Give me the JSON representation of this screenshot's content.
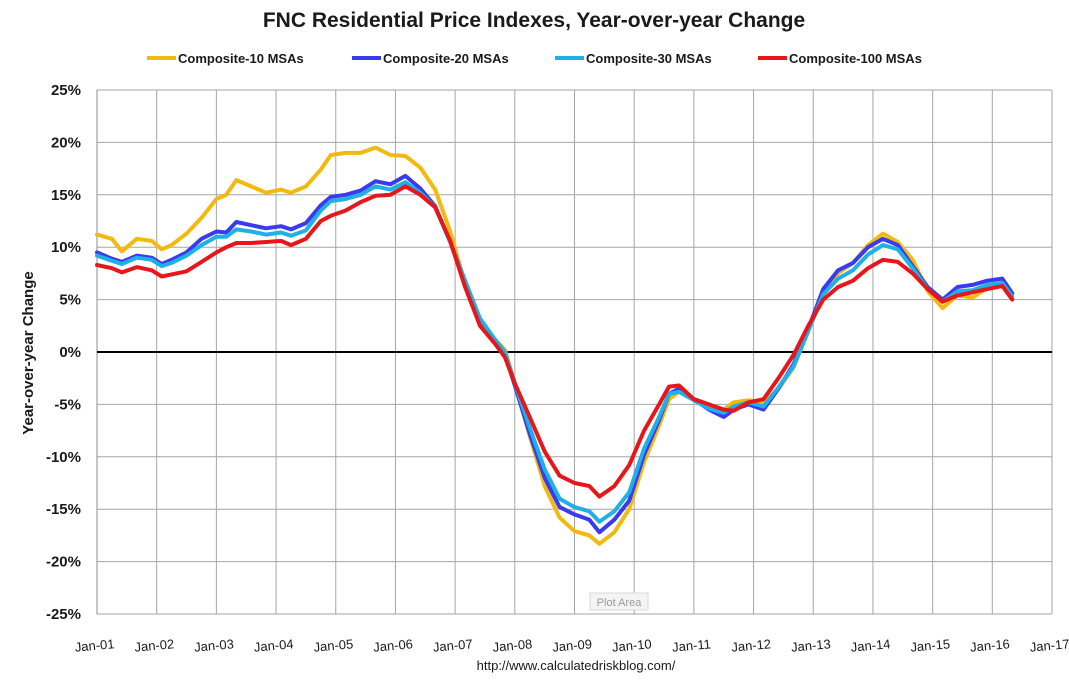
{
  "chart_data": {
    "type": "line",
    "title": "FNC Residential Price Indexes, Year-over-year Change",
    "ylabel": "Year-over-year Change",
    "xlabel": "",
    "footer": "http://www.calculatedriskblog.com/",
    "plot_area_tag": "Plot Area",
    "ylim": [
      -25,
      25
    ],
    "xlim": [
      "2001-01",
      "2017-01"
    ],
    "grid": true,
    "legend_position": "top",
    "x_ticks": [
      "Jan-01",
      "Jan-02",
      "Jan-03",
      "Jan-04",
      "Jan-05",
      "Jan-06",
      "Jan-07",
      "Jan-08",
      "Jan-09",
      "Jan-10",
      "Jan-11",
      "Jan-12",
      "Jan-13",
      "Jan-14",
      "Jan-15",
      "Jan-16",
      "Jan-17"
    ],
    "y_ticks": [
      "25%",
      "20%",
      "15%",
      "10%",
      "5%",
      "0%",
      "-5%",
      "-10%",
      "-15%",
      "-20%",
      "-25%"
    ],
    "series": [
      {
        "name": "Composite-10 MSAs",
        "color": "#f2b90f",
        "points": [
          [
            "2001-01",
            11.2
          ],
          [
            "2001-04",
            10.8
          ],
          [
            "2001-06",
            9.6
          ],
          [
            "2001-09",
            10.8
          ],
          [
            "2001-12",
            10.6
          ],
          [
            "2002-02",
            9.8
          ],
          [
            "2002-04",
            10.2
          ],
          [
            "2002-07",
            11.3
          ],
          [
            "2002-10",
            12.8
          ],
          [
            "2003-01",
            14.6
          ],
          [
            "2003-03",
            15.0
          ],
          [
            "2003-05",
            16.4
          ],
          [
            "2003-08",
            15.8
          ],
          [
            "2003-11",
            15.2
          ],
          [
            "2004-02",
            15.5
          ],
          [
            "2004-04",
            15.2
          ],
          [
            "2004-07",
            15.8
          ],
          [
            "2004-10",
            17.4
          ],
          [
            "2004-12",
            18.8
          ],
          [
            "2005-03",
            19.0
          ],
          [
            "2005-06",
            19.0
          ],
          [
            "2005-09",
            19.5
          ],
          [
            "2005-12",
            18.8
          ],
          [
            "2006-03",
            18.7
          ],
          [
            "2006-06",
            17.6
          ],
          [
            "2006-09",
            15.5
          ],
          [
            "2006-12",
            11.5
          ],
          [
            "2007-03",
            6.5
          ],
          [
            "2007-06",
            2.8
          ],
          [
            "2007-09",
            1.2
          ],
          [
            "2007-11",
            0.2
          ],
          [
            "2008-01",
            -3.0
          ],
          [
            "2008-04",
            -8.0
          ],
          [
            "2008-07",
            -12.8
          ],
          [
            "2008-10",
            -15.8
          ],
          [
            "2009-01",
            -17.1
          ],
          [
            "2009-04",
            -17.5
          ],
          [
            "2009-06",
            -18.3
          ],
          [
            "2009-09",
            -17.2
          ],
          [
            "2009-12",
            -15.0
          ],
          [
            "2010-03",
            -10.5
          ],
          [
            "2010-06",
            -7.0
          ],
          [
            "2010-08",
            -4.5
          ],
          [
            "2010-10",
            -3.8
          ],
          [
            "2011-01",
            -4.5
          ],
          [
            "2011-04",
            -5.0
          ],
          [
            "2011-07",
            -5.5
          ],
          [
            "2011-09",
            -4.8
          ],
          [
            "2011-12",
            -4.6
          ],
          [
            "2012-03",
            -4.8
          ],
          [
            "2012-06",
            -3.5
          ],
          [
            "2012-09",
            -1.5
          ],
          [
            "2012-12",
            2.0
          ],
          [
            "2013-03",
            5.5
          ],
          [
            "2013-06",
            7.5
          ],
          [
            "2013-09",
            8.5
          ],
          [
            "2013-12",
            10.2
          ],
          [
            "2014-03",
            11.3
          ],
          [
            "2014-06",
            10.5
          ],
          [
            "2014-09",
            8.8
          ],
          [
            "2014-12",
            5.8
          ],
          [
            "2015-03",
            4.2
          ],
          [
            "2015-06",
            5.4
          ],
          [
            "2015-09",
            5.2
          ],
          [
            "2015-12",
            6.1
          ],
          [
            "2016-03",
            6.5
          ],
          [
            "2016-05",
            5.1
          ]
        ]
      },
      {
        "name": "Composite-20 MSAs",
        "color": "#3a3aee",
        "points": [
          [
            "2001-01",
            9.5
          ],
          [
            "2001-04",
            8.9
          ],
          [
            "2001-06",
            8.6
          ],
          [
            "2001-09",
            9.2
          ],
          [
            "2001-12",
            9.0
          ],
          [
            "2002-02",
            8.4
          ],
          [
            "2002-04",
            8.8
          ],
          [
            "2002-07",
            9.5
          ],
          [
            "2002-10",
            10.8
          ],
          [
            "2003-01",
            11.5
          ],
          [
            "2003-03",
            11.4
          ],
          [
            "2003-05",
            12.4
          ],
          [
            "2003-08",
            12.1
          ],
          [
            "2003-11",
            11.8
          ],
          [
            "2004-02",
            12.0
          ],
          [
            "2004-04",
            11.7
          ],
          [
            "2004-07",
            12.3
          ],
          [
            "2004-10",
            14.0
          ],
          [
            "2004-12",
            14.8
          ],
          [
            "2005-03",
            15.0
          ],
          [
            "2005-06",
            15.4
          ],
          [
            "2005-09",
            16.3
          ],
          [
            "2005-12",
            16.0
          ],
          [
            "2006-03",
            16.8
          ],
          [
            "2006-06",
            15.6
          ],
          [
            "2006-09",
            13.9
          ],
          [
            "2006-12",
            10.5
          ],
          [
            "2007-03",
            6.5
          ],
          [
            "2007-06",
            3.0
          ],
          [
            "2007-09",
            1.0
          ],
          [
            "2007-11",
            -0.2
          ],
          [
            "2008-01",
            -3.2
          ],
          [
            "2008-04",
            -7.8
          ],
          [
            "2008-07",
            -12.0
          ],
          [
            "2008-10",
            -14.8
          ],
          [
            "2009-01",
            -15.5
          ],
          [
            "2009-04",
            -16.0
          ],
          [
            "2009-06",
            -17.2
          ],
          [
            "2009-09",
            -16.0
          ],
          [
            "2009-12",
            -14.2
          ],
          [
            "2010-03",
            -9.8
          ],
          [
            "2010-06",
            -6.5
          ],
          [
            "2010-08",
            -4.0
          ],
          [
            "2010-10",
            -3.5
          ],
          [
            "2011-01",
            -4.5
          ],
          [
            "2011-04",
            -5.5
          ],
          [
            "2011-07",
            -6.2
          ],
          [
            "2011-09",
            -5.5
          ],
          [
            "2011-12",
            -5.0
          ],
          [
            "2012-03",
            -5.5
          ],
          [
            "2012-06",
            -3.5
          ],
          [
            "2012-09",
            -1.2
          ],
          [
            "2012-12",
            2.2
          ],
          [
            "2013-03",
            6.0
          ],
          [
            "2013-06",
            7.8
          ],
          [
            "2013-09",
            8.5
          ],
          [
            "2013-12",
            10.0
          ],
          [
            "2014-03",
            10.8
          ],
          [
            "2014-06",
            10.2
          ],
          [
            "2014-09",
            8.2
          ],
          [
            "2014-12",
            6.2
          ],
          [
            "2015-03",
            5.0
          ],
          [
            "2015-06",
            6.2
          ],
          [
            "2015-09",
            6.4
          ],
          [
            "2015-12",
            6.8
          ],
          [
            "2016-03",
            7.0
          ],
          [
            "2016-05",
            5.6
          ]
        ]
      },
      {
        "name": "Composite-30 MSAs",
        "color": "#1fb0e6",
        "points": [
          [
            "2001-01",
            9.2
          ],
          [
            "2001-04",
            8.7
          ],
          [
            "2001-06",
            8.4
          ],
          [
            "2001-09",
            9.0
          ],
          [
            "2001-12",
            8.8
          ],
          [
            "2002-02",
            8.2
          ],
          [
            "2002-04",
            8.5
          ],
          [
            "2002-07",
            9.2
          ],
          [
            "2002-10",
            10.2
          ],
          [
            "2003-01",
            11.0
          ],
          [
            "2003-03",
            11.0
          ],
          [
            "2003-05",
            11.7
          ],
          [
            "2003-08",
            11.5
          ],
          [
            "2003-11",
            11.2
          ],
          [
            "2004-02",
            11.4
          ],
          [
            "2004-04",
            11.1
          ],
          [
            "2004-07",
            11.6
          ],
          [
            "2004-10",
            13.5
          ],
          [
            "2004-12",
            14.4
          ],
          [
            "2005-03",
            14.6
          ],
          [
            "2005-06",
            15.0
          ],
          [
            "2005-09",
            15.8
          ],
          [
            "2005-12",
            15.5
          ],
          [
            "2006-03",
            16.2
          ],
          [
            "2006-06",
            15.2
          ],
          [
            "2006-09",
            13.8
          ],
          [
            "2006-12",
            10.5
          ],
          [
            "2007-03",
            6.8
          ],
          [
            "2007-06",
            3.2
          ],
          [
            "2007-09",
            1.2
          ],
          [
            "2007-11",
            0.0
          ],
          [
            "2008-01",
            -3.0
          ],
          [
            "2008-04",
            -7.2
          ],
          [
            "2008-07",
            -11.2
          ],
          [
            "2008-10",
            -14.0
          ],
          [
            "2009-01",
            -14.8
          ],
          [
            "2009-04",
            -15.2
          ],
          [
            "2009-06",
            -16.2
          ],
          [
            "2009-09",
            -15.2
          ],
          [
            "2009-12",
            -13.4
          ],
          [
            "2010-03",
            -9.2
          ],
          [
            "2010-06",
            -6.2
          ],
          [
            "2010-08",
            -4.0
          ],
          [
            "2010-10",
            -3.8
          ],
          [
            "2011-01",
            -4.6
          ],
          [
            "2011-04",
            -5.4
          ],
          [
            "2011-07",
            -5.8
          ],
          [
            "2011-09",
            -5.2
          ],
          [
            "2011-12",
            -4.8
          ],
          [
            "2012-03",
            -5.2
          ],
          [
            "2012-06",
            -3.4
          ],
          [
            "2012-09",
            -1.4
          ],
          [
            "2012-12",
            2.0
          ],
          [
            "2013-03",
            5.5
          ],
          [
            "2013-06",
            7.0
          ],
          [
            "2013-09",
            7.8
          ],
          [
            "2013-12",
            9.3
          ],
          [
            "2014-03",
            10.2
          ],
          [
            "2014-06",
            9.8
          ],
          [
            "2014-09",
            8.0
          ],
          [
            "2014-12",
            6.0
          ],
          [
            "2015-03",
            4.8
          ],
          [
            "2015-06",
            5.8
          ],
          [
            "2015-09",
            5.9
          ],
          [
            "2015-12",
            6.4
          ],
          [
            "2016-03",
            6.6
          ],
          [
            "2016-05",
            5.3
          ]
        ]
      },
      {
        "name": "Composite-100 MSAs",
        "color": "#e8161b",
        "points": [
          [
            "2001-01",
            8.3
          ],
          [
            "2001-04",
            8.0
          ],
          [
            "2001-06",
            7.6
          ],
          [
            "2001-09",
            8.1
          ],
          [
            "2001-12",
            7.8
          ],
          [
            "2002-02",
            7.2
          ],
          [
            "2002-04",
            7.4
          ],
          [
            "2002-07",
            7.7
          ],
          [
            "2002-10",
            8.6
          ],
          [
            "2003-01",
            9.5
          ],
          [
            "2003-03",
            10.0
          ],
          [
            "2003-05",
            10.4
          ],
          [
            "2003-08",
            10.4
          ],
          [
            "2003-11",
            10.5
          ],
          [
            "2004-02",
            10.6
          ],
          [
            "2004-04",
            10.2
          ],
          [
            "2004-07",
            10.8
          ],
          [
            "2004-10",
            12.5
          ],
          [
            "2004-12",
            13.0
          ],
          [
            "2005-03",
            13.5
          ],
          [
            "2005-06",
            14.3
          ],
          [
            "2005-09",
            14.9
          ],
          [
            "2005-12",
            15.0
          ],
          [
            "2006-03",
            15.8
          ],
          [
            "2006-06",
            15.0
          ],
          [
            "2006-09",
            13.8
          ],
          [
            "2006-12",
            10.6
          ],
          [
            "2007-03",
            6.2
          ],
          [
            "2007-06",
            2.5
          ],
          [
            "2007-09",
            0.8
          ],
          [
            "2007-11",
            -0.5
          ],
          [
            "2008-01",
            -3.0
          ],
          [
            "2008-04",
            -6.2
          ],
          [
            "2008-07",
            -9.5
          ],
          [
            "2008-10",
            -11.8
          ],
          [
            "2009-01",
            -12.5
          ],
          [
            "2009-04",
            -12.8
          ],
          [
            "2009-06",
            -13.8
          ],
          [
            "2009-09",
            -12.8
          ],
          [
            "2009-12",
            -10.8
          ],
          [
            "2010-03",
            -7.5
          ],
          [
            "2010-06",
            -5.0
          ],
          [
            "2010-08",
            -3.3
          ],
          [
            "2010-10",
            -3.2
          ],
          [
            "2011-01",
            -4.5
          ],
          [
            "2011-04",
            -5.0
          ],
          [
            "2011-07",
            -5.5
          ],
          [
            "2011-09",
            -5.6
          ],
          [
            "2011-12",
            -4.8
          ],
          [
            "2012-03",
            -4.5
          ],
          [
            "2012-06",
            -2.5
          ],
          [
            "2012-09",
            -0.3
          ],
          [
            "2012-12",
            2.5
          ],
          [
            "2013-03",
            5.0
          ],
          [
            "2013-06",
            6.2
          ],
          [
            "2013-09",
            6.8
          ],
          [
            "2013-12",
            8.0
          ],
          [
            "2014-03",
            8.8
          ],
          [
            "2014-06",
            8.6
          ],
          [
            "2014-09",
            7.5
          ],
          [
            "2014-12",
            6.0
          ],
          [
            "2015-03",
            4.8
          ],
          [
            "2015-06",
            5.4
          ],
          [
            "2015-09",
            5.7
          ],
          [
            "2015-12",
            6.0
          ],
          [
            "2016-03",
            6.3
          ],
          [
            "2016-05",
            5.0
          ]
        ]
      }
    ]
  }
}
